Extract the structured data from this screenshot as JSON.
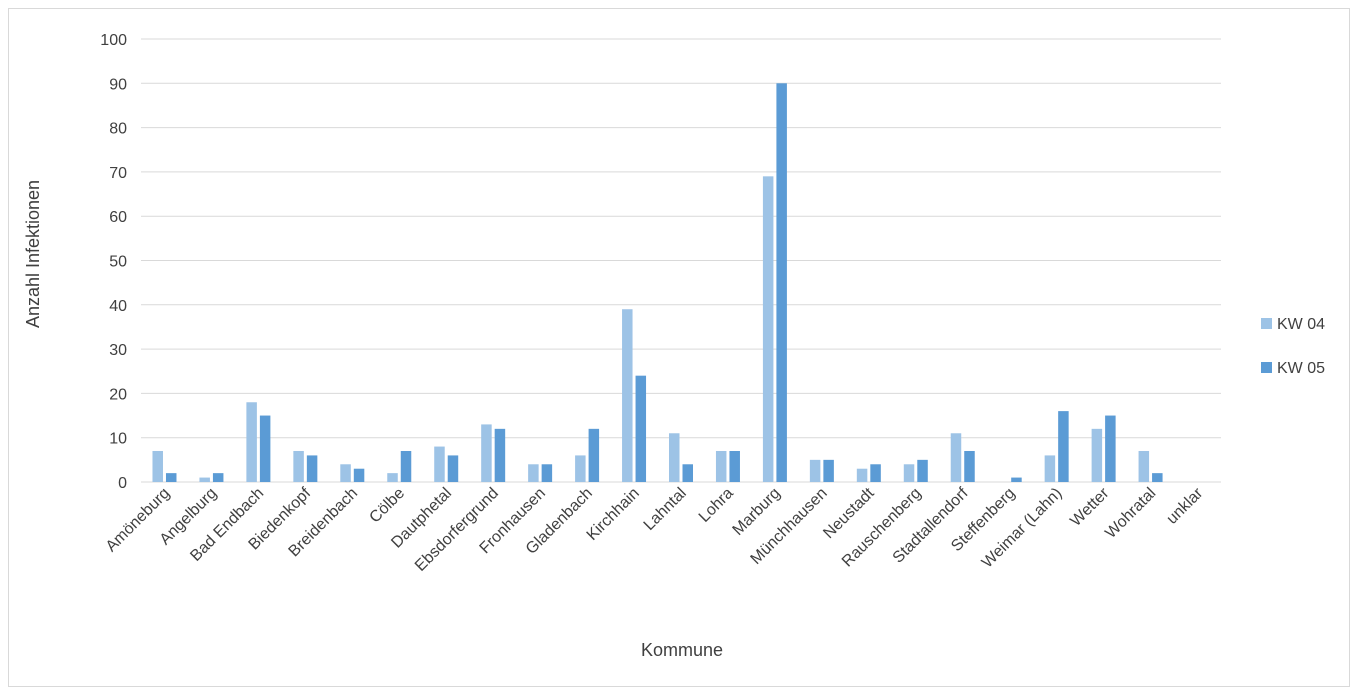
{
  "chart_data": {
    "type": "bar",
    "title": "",
    "xlabel": "Kommune",
    "ylabel": "Anzahl Infektionen",
    "ylim": [
      0,
      100
    ],
    "yticks": [
      0,
      10,
      20,
      30,
      40,
      50,
      60,
      70,
      80,
      90,
      100
    ],
    "grid": true,
    "legend_position": "right",
    "categories": [
      "Amöneburg",
      "Angelburg",
      "Bad Endbach",
      "Biedenkopf",
      "Breidenbach",
      "Cölbe",
      "Dautphetal",
      "Ebsdorfergrund",
      "Fronhausen",
      "Gladenbach",
      "Kirchhain",
      "Lahntal",
      "Lohra",
      "Marburg",
      "Münchhausen",
      "Neustadt",
      "Rauschenberg",
      "Stadtallendorf",
      "Steffenberg",
      "Weimar (Lahn)",
      "Wetter",
      "Wohratal",
      "unklar"
    ],
    "series": [
      {
        "name": "KW 04",
        "color": "#9dc3e6",
        "values": [
          7,
          1,
          18,
          7,
          4,
          2,
          8,
          13,
          4,
          6,
          39,
          11,
          7,
          69,
          5,
          3,
          4,
          11,
          0,
          6,
          12,
          7,
          0
        ]
      },
      {
        "name": "KW 05",
        "color": "#5b9bd5",
        "values": [
          2,
          2,
          15,
          6,
          3,
          7,
          6,
          12,
          4,
          12,
          24,
          4,
          7,
          90,
          5,
          4,
          5,
          7,
          1,
          16,
          15,
          2,
          0
        ]
      }
    ]
  }
}
